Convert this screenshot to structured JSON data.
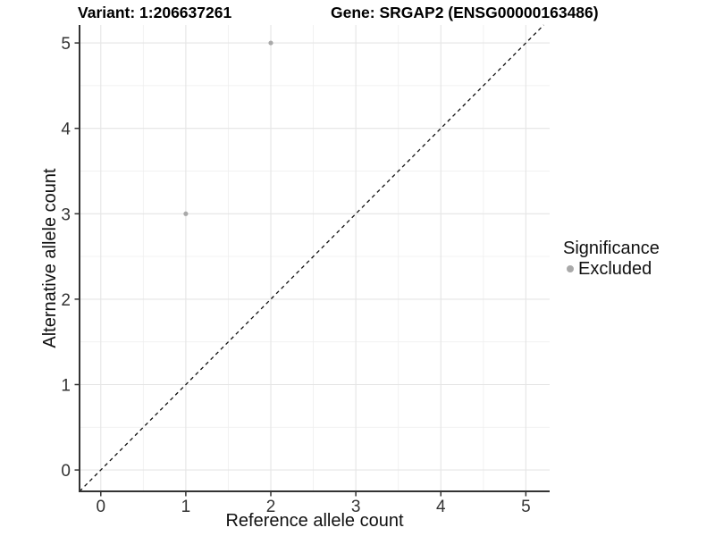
{
  "chart_data": {
    "type": "scatter",
    "titles": {
      "left": "Variant: 1:206637261",
      "right": "Gene: SRGAP2 (ENSG00000163486)"
    },
    "xlabel": "Reference allele count",
    "ylabel": "Alternative allele count",
    "xticks": [
      0,
      1,
      2,
      3,
      4,
      5
    ],
    "yticks": [
      0,
      1,
      2,
      3,
      4,
      5
    ],
    "xlim": [
      -0.25,
      5.28
    ],
    "ylim": [
      -0.25,
      5.21
    ],
    "grid": {
      "major": true,
      "minor": true
    },
    "points": [
      {
        "x": 1,
        "y": 3,
        "series": "Excluded"
      },
      {
        "x": 2,
        "y": 5,
        "series": "Excluded"
      }
    ],
    "reference_line": {
      "type": "identity",
      "slope": 1,
      "intercept": 0,
      "style": "dashed"
    },
    "legend": {
      "title": "Significance",
      "position": "right",
      "entries": [
        {
          "label": "Excluded",
          "color": "#a9a9a9"
        }
      ]
    },
    "colors": {
      "point": "#a9a9a9",
      "grid_major": "#e5e5e5",
      "grid_minor": "#f0f0f0",
      "axis_line": "#333333",
      "tick_text": "#333333",
      "ref_line": "#111111",
      "background": "#ffffff"
    }
  }
}
